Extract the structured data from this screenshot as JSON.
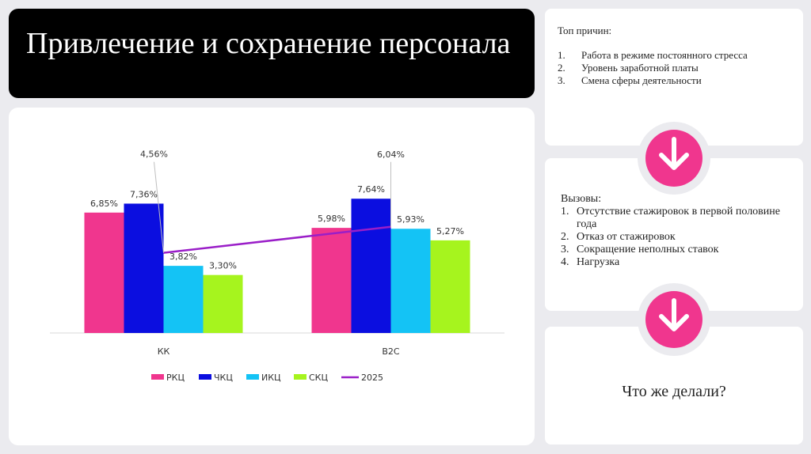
{
  "title": "Привлечение и сохранение персонала",
  "reasons": {
    "heading": "Топ причин:",
    "items": [
      {
        "num": "1.",
        "text": "Работа в режиме постоянного стресса"
      },
      {
        "num": "2.",
        "text": "Уровень заработной платы"
      },
      {
        "num": "3.",
        "text": "Смена сферы деятельности"
      }
    ]
  },
  "challenges": {
    "heading": "Вызовы:",
    "items": [
      {
        "num": "1.",
        "text": "Отсутствие стажировок в первой половине года"
      },
      {
        "num": "2.",
        "text": "Отказ от стажировок"
      },
      {
        "num": "3.",
        "text": "Сокращение неполных ставок"
      },
      {
        "num": "4.",
        "text": "Нагрузка"
      }
    ]
  },
  "question": "Что же делали?",
  "icons": {
    "arrow": "arrow-down-icon"
  },
  "colors": {
    "accent": "#f0368e"
  },
  "chart_data": {
    "type": "bar",
    "categories": [
      "КК",
      "B2C"
    ],
    "series": [
      {
        "name": "РКЦ",
        "color": "#f0368e",
        "values": [
          6.85,
          5.98
        ],
        "labels": [
          "6,85%",
          "5,98%"
        ]
      },
      {
        "name": "ЧКЦ",
        "color": "#0b0ee0",
        "values": [
          7.36,
          7.64
        ],
        "labels": [
          "7,36%",
          "7,64%"
        ]
      },
      {
        "name": "ИКЦ",
        "color": "#14c3f5",
        "values": [
          3.82,
          5.93
        ],
        "labels": [
          "3,82%",
          "5,93%"
        ]
      },
      {
        "name": "СКЦ",
        "color": "#a6f41e",
        "values": [
          3.3,
          5.27
        ],
        "labels": [
          "3,30%",
          "5,27%"
        ]
      }
    ],
    "line": {
      "name": "2025",
      "color": "#9a1ec8",
      "values": [
        4.56,
        6.04
      ],
      "labels": [
        "4,56%",
        "6,04%"
      ],
      "type": "line"
    },
    "ylim": [
      0,
      9
    ],
    "grid": false,
    "legend": "bottom"
  }
}
